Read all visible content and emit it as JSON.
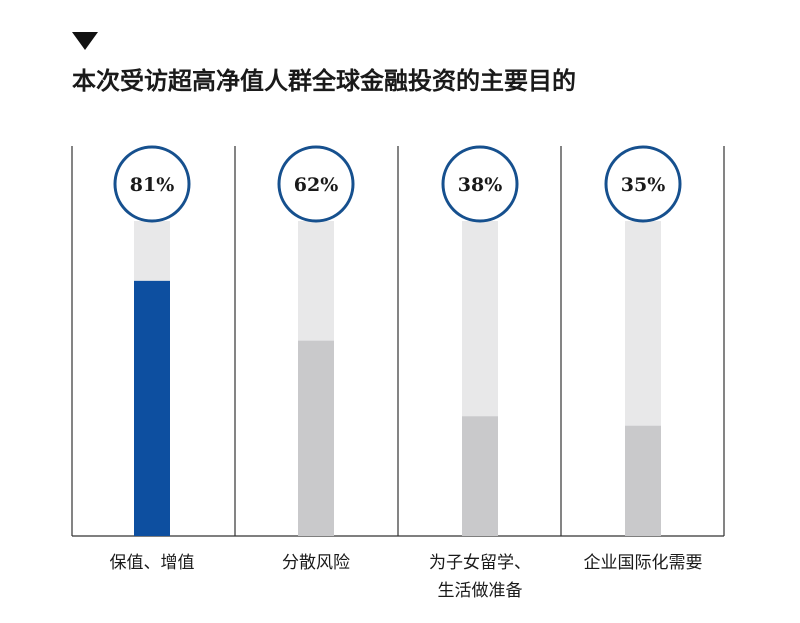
{
  "chart_data": {
    "type": "bar",
    "title": "本次受访超高净值人群全球金融投资的主要目的",
    "categories": [
      [
        "保值、增值"
      ],
      [
        "分散风险"
      ],
      [
        "为子女留学、",
        "生活做准备"
      ],
      [
        "企业国际化需要"
      ]
    ],
    "values": [
      81,
      62,
      38,
      35
    ],
    "value_labels": [
      "81%",
      "62%",
      "38%",
      "35%"
    ],
    "unit": "%",
    "ylim": [
      0,
      100
    ],
    "grid": false,
    "legend": "none",
    "colors": {
      "highlight_bar": "#0d4fa0",
      "bar": "#c9c9cb",
      "track": "#e8e8e9",
      "circle_stroke": "#16508e",
      "divider": "#333333",
      "text": "#1a1a1a"
    },
    "highlight_index": 0
  }
}
